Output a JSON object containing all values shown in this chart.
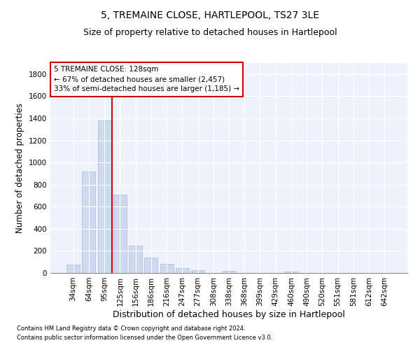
{
  "title": "5, TREMAINE CLOSE, HARTLEPOOL, TS27 3LE",
  "subtitle": "Size of property relative to detached houses in Hartlepool",
  "xlabel": "Distribution of detached houses by size in Hartlepool",
  "ylabel": "Number of detached properties",
  "footnote1": "Contains HM Land Registry data © Crown copyright and database right 2024.",
  "footnote2": "Contains public sector information licensed under the Open Government Licence v3.0.",
  "categories": [
    "34sqm",
    "64sqm",
    "95sqm",
    "125sqm",
    "156sqm",
    "186sqm",
    "216sqm",
    "247sqm",
    "277sqm",
    "308sqm",
    "338sqm",
    "368sqm",
    "399sqm",
    "429sqm",
    "460sqm",
    "490sqm",
    "520sqm",
    "551sqm",
    "581sqm",
    "612sqm",
    "642sqm"
  ],
  "values": [
    75,
    920,
    1380,
    710,
    245,
    140,
    80,
    45,
    25,
    0,
    20,
    0,
    0,
    0,
    10,
    0,
    0,
    0,
    0,
    0,
    0
  ],
  "bar_color": "#ccd9ee",
  "bar_edge_color": "#aabbd4",
  "vline_x": 2.5,
  "vline_color": "#cc0000",
  "annotation_line1": "5 TREMAINE CLOSE: 128sqm",
  "annotation_line2": "← 67% of detached houses are smaller (2,457)",
  "annotation_line3": "33% of semi-detached houses are larger (1,185) →",
  "ylim": [
    0,
    1900
  ],
  "yticks": [
    0,
    200,
    400,
    600,
    800,
    1000,
    1200,
    1400,
    1600,
    1800
  ],
  "background_color": "#edf2fc",
  "grid_color": "#ffffff",
  "title_fontsize": 10,
  "subtitle_fontsize": 9,
  "xlabel_fontsize": 9,
  "ylabel_fontsize": 8.5,
  "tick_fontsize": 7.5,
  "annotation_fontsize": 7.5,
  "footnote_fontsize": 6
}
